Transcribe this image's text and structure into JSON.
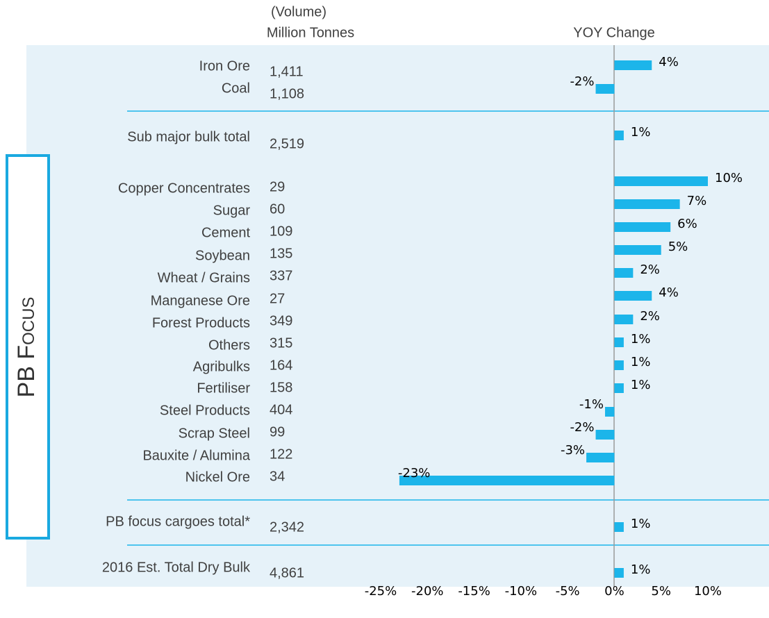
{
  "chart_data": {
    "type": "bar",
    "orientation": "horizontal",
    "volume_header": [
      "(Volume)",
      "Million Tonnes"
    ],
    "change_header": "YOY Change",
    "group_label": "PB Focus",
    "categories": [
      "Iron Ore",
      "Coal",
      "Sub major bulk total",
      "Copper Concentrates",
      "Sugar",
      "Cement",
      "Soybean",
      "Wheat / Grains",
      "Manganese Ore",
      "Forest Products",
      "Others",
      "Agribulks",
      "Fertiliser",
      "Steel Products",
      "Scrap Steel",
      "Bauxite / Alumina",
      "Nickel Ore",
      "PB focus cargoes total*",
      "2016 Est. Total Dry Bulk"
    ],
    "volumes": [
      "1,411",
      "1,108",
      "2,519",
      "29",
      "60",
      "109",
      "135",
      "337",
      "27",
      "349",
      "315",
      "164",
      "158",
      "404",
      "99",
      "122",
      "34",
      "2,342",
      "4,861"
    ],
    "values": [
      4,
      -2,
      1,
      10,
      7,
      6,
      5,
      2,
      4,
      2,
      1,
      1,
      1,
      -1,
      -2,
      -3,
      -23,
      1,
      1
    ],
    "value_labels": [
      "4%",
      "-2%",
      "1%",
      "10%",
      "7%",
      "6%",
      "5%",
      "2%",
      "4%",
      "2%",
      "1%",
      "1%",
      "1%",
      "-1%",
      "-2%",
      "-3%",
      "-23%",
      "1%",
      "1%"
    ],
    "color": "#1cb5ea",
    "xlim": [
      -25,
      10
    ],
    "xticks": [
      {
        "value": -25,
        "label": "-25%"
      },
      {
        "value": -20,
        "label": "-20%"
      },
      {
        "value": -15,
        "label": "-15%"
      },
      {
        "value": -10,
        "label": "-10%"
      },
      {
        "value": -5,
        "label": "-5%"
      },
      {
        "value": 0,
        "label": "0%"
      },
      {
        "value": 5,
        "label": "5%"
      },
      {
        "value": 10,
        "label": "10%"
      }
    ]
  }
}
